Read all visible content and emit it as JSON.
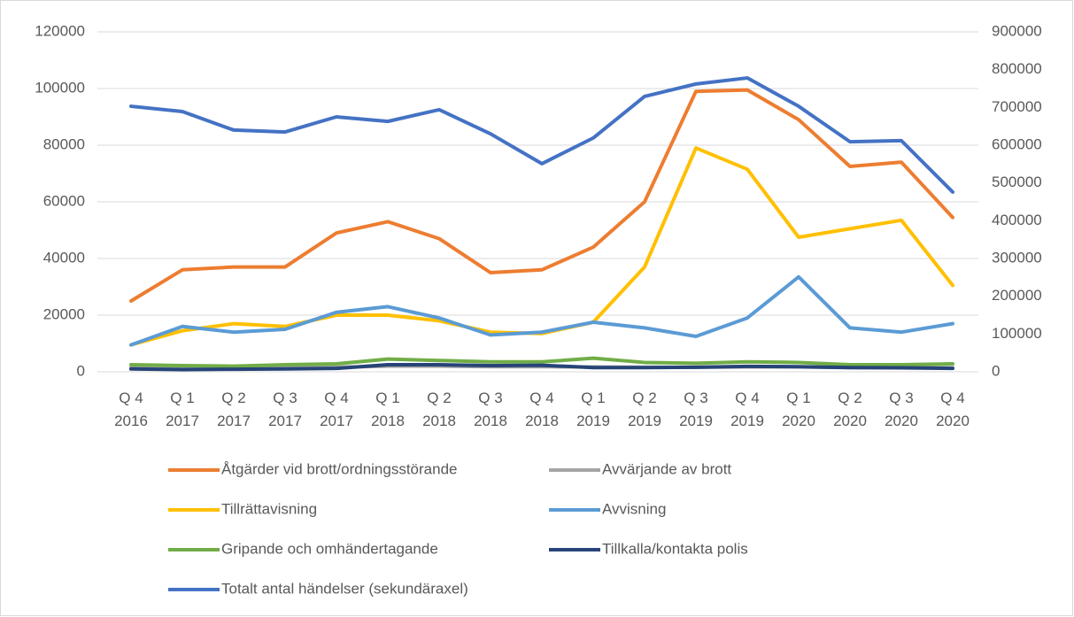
{
  "chart_data": {
    "type": "line",
    "categories": [
      "Q 4 2016",
      "Q 1 2017",
      "Q 2 2017",
      "Q 3 2017",
      "Q 4 2017",
      "Q 1 2018",
      "Q 2 2018",
      "Q 3 2018",
      "Q 4 2018",
      "Q 1 2019",
      "Q 2 2019",
      "Q 3 2019",
      "Q 4 2019",
      "Q 1 2020",
      "Q 2 2020",
      "Q 3 2020",
      "Q 4 2020"
    ],
    "ylim": [
      0,
      120000
    ],
    "yticks": [
      0,
      20000,
      40000,
      60000,
      80000,
      100000,
      120000
    ],
    "y2lim": [
      0,
      900000
    ],
    "y2ticks": [
      0,
      100000,
      200000,
      300000,
      400000,
      500000,
      600000,
      700000,
      800000,
      900000
    ],
    "grid": true,
    "series": [
      {
        "name": "Åtgärder vid brott/ordningsstörande",
        "color": "#ed7d31",
        "values": [
          25000,
          36000,
          37000,
          37000,
          49000,
          53000,
          47000,
          35000,
          36000,
          44000,
          60000,
          99000,
          99500,
          89000,
          72500,
          74000,
          54500
        ]
      },
      {
        "name": "Avvärjande av brott",
        "color": "#a5a5a5",
        "values": [
          1500,
          1400,
          1400,
          1500,
          1600,
          2000,
          2000,
          1800,
          1800,
          1700,
          1600,
          1600,
          1700,
          1700,
          1500,
          1500,
          1400
        ]
      },
      {
        "name": "Tillrättavisning",
        "color": "#ffc000",
        "values": [
          9500,
          14500,
          17000,
          16000,
          20000,
          20000,
          18000,
          14000,
          13500,
          17500,
          37000,
          79000,
          71500,
          47500,
          50500,
          53500,
          30500
        ]
      },
      {
        "name": "Avvisning",
        "color": "#5b9bd5",
        "values": [
          9500,
          16000,
          14000,
          15000,
          21000,
          23000,
          19000,
          13000,
          14000,
          17500,
          15500,
          12500,
          19000,
          33500,
          15500,
          14000,
          17000
        ]
      },
      {
        "name": "Gripande och omhändertagande",
        "color": "#70ad47",
        "values": [
          2500,
          2200,
          2000,
          2500,
          2800,
          4500,
          4000,
          3500,
          3500,
          4800,
          3300,
          3000,
          3500,
          3300,
          2500,
          2500,
          2800
        ]
      },
      {
        "name": "Tillkalla/kontakta polis",
        "color": "#264478",
        "values": [
          1000,
          800,
          900,
          1000,
          1200,
          2500,
          2500,
          2200,
          2300,
          1500,
          1500,
          1600,
          1900,
          1800,
          1500,
          1400,
          1200
        ]
      },
      {
        "name": "Totalt antal händelser (sekundäraxel)",
        "color": "#4472c4",
        "axis": "y2",
        "values": [
          703000,
          689000,
          640000,
          635000,
          675000,
          663000,
          694000,
          630000,
          551000,
          619000,
          729000,
          762000,
          778000,
          703000,
          609000,
          612000,
          476000
        ]
      }
    ]
  }
}
